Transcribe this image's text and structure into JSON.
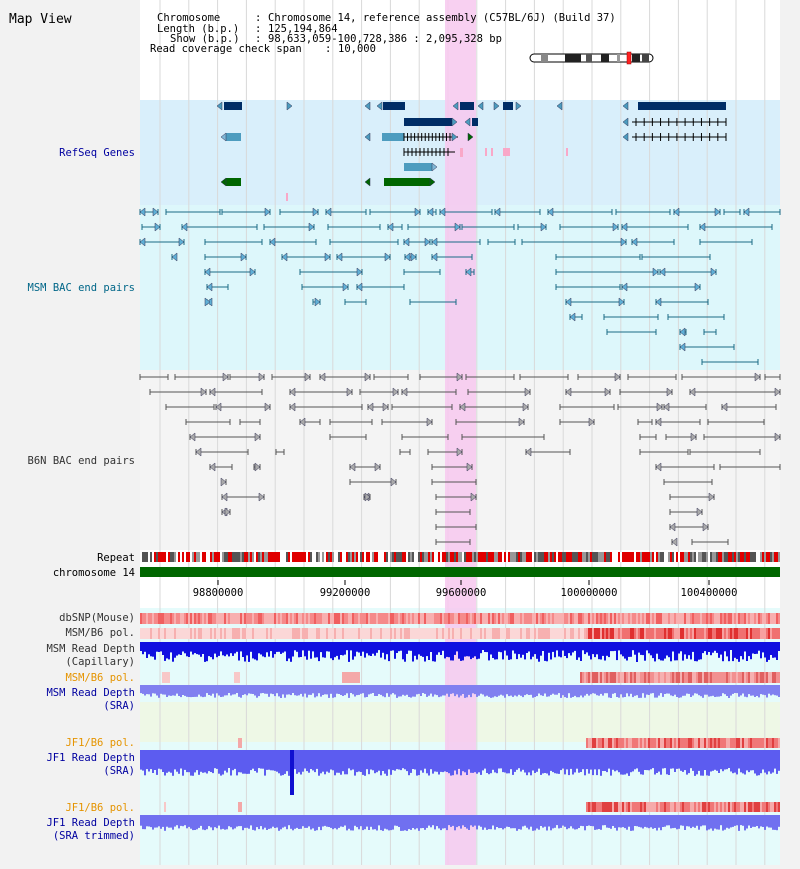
{
  "window_title": "Map View",
  "header": {
    "chromosome_label": "Chromosome",
    "chromosome_value": "Chromosome 14, reference assembly (C57BL/6J) (Build 37)",
    "length_label": "Length (b.p.)",
    "length_value": "125,194,864",
    "show_label": "Show (b.p.)",
    "show_value": "98,633,059-100,728,386 : 2,095,328 bp",
    "read_coverage_label": "Read coverage check span",
    "read_coverage_value": "10,000"
  },
  "tracks": {
    "refseq": "RefSeq Genes",
    "msm_bac": "MSM BAC end pairs",
    "b6n_bac": "B6N BAC end pairs",
    "repeat": "Repeat",
    "chromosome": "chromosome 14",
    "dbsnp": "dbSNP(Mouse)",
    "msm_b6_pol": "MSM/B6 pol.",
    "msm_read_depth_cap_1": "MSM Read Depth",
    "msm_read_depth_cap_2": "(Capillary)",
    "msm_b6_pol_2": "MSM/B6 pol.",
    "msm_read_depth_sra_1": "MSM Read Depth",
    "msm_read_depth_sra_2": "(SRA)",
    "jf1_b6_pol": "JF1/B6 pol.",
    "jf1_read_depth_sra_1": "JF1 Read Depth",
    "jf1_read_depth_sra_2": "(SRA)",
    "jf1_b6_pol_2": "JF1/B6 pol.",
    "jf1_read_depth_trim_1": "JF1 Read Depth",
    "jf1_read_depth_trim_2": "(SRA trimmed)"
  },
  "axis_ticks": [
    "98800000",
    "99200000",
    "99600000",
    "100000000",
    "100400000"
  ],
  "colors": {
    "refseq_bg": "#d9effb",
    "msm_bg": "#ddf7fb",
    "b6n_bg": "#f4f4f4",
    "lower_bg": "#e5fbfb",
    "highlight": "#f7c8ef",
    "navy": "#002d66",
    "teal": "#1a6b86",
    "green": "#006600",
    "depth_blue": "#1010e0",
    "depth_light": "#8080f0"
  }
}
